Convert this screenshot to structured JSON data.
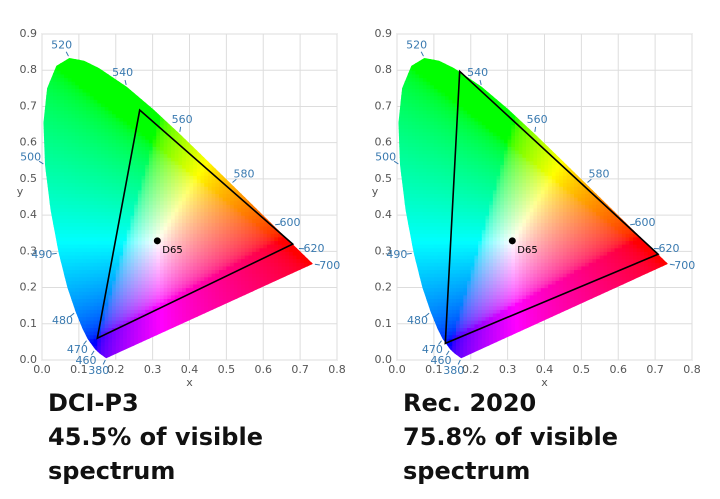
{
  "chart_data": [
    {
      "type": "chromaticity",
      "title": "DCI-P3",
      "subtitle": "45.5% of visible spectrum",
      "x_label": "x",
      "y_label": "y",
      "xlim": [
        0,
        0.8
      ],
      "ylim": [
        0,
        0.9
      ],
      "xticks": [
        {
          "value": 0,
          "label": "0.0"
        },
        0.1,
        0.2,
        0.3,
        0.4,
        0.5,
        0.6,
        0.7,
        0.8
      ],
      "yticks": [
        {
          "value": 0,
          "label": "0.0"
        },
        0.1,
        0.2,
        0.3,
        0.4,
        0.5,
        0.6,
        0.7,
        0.8,
        0.9
      ],
      "grid": true,
      "locus": {
        "x": [
          0.1741,
          0.1566,
          0.144,
          0.1241,
          0.1096,
          0.0913,
          0.0687,
          0.0454,
          0.0235,
          0.0082,
          0.0039,
          0.0139,
          0.0389,
          0.0743,
          0.1142,
          0.1547,
          0.2296,
          0.3016,
          0.3731,
          0.4441,
          0.5125,
          0.5752,
          0.627,
          0.6915,
          0.719,
          0.7347
        ],
        "y": [
          0.005,
          0.0177,
          0.0297,
          0.0578,
          0.0868,
          0.1327,
          0.2007,
          0.295,
          0.4127,
          0.5384,
          0.6548,
          0.7502,
          0.812,
          0.8338,
          0.8262,
          0.8059,
          0.7543,
          0.6923,
          0.6245,
          0.5547,
          0.4866,
          0.4242,
          0.3725,
          0.3083,
          0.2809,
          0.2653
        ]
      },
      "wavelength_labels": [
        {
          "text": "380",
          "x": 0.1741,
          "y": 0.005
        },
        {
          "text": "460",
          "x": 0.144,
          "y": 0.0297
        },
        {
          "text": "470",
          "x": 0.1241,
          "y": 0.0578
        },
        {
          "text": "480",
          "x": 0.0913,
          "y": 0.1327
        },
        {
          "text": "490",
          "x": 0.0454,
          "y": 0.295
        },
        {
          "text": "500",
          "x": 0.0082,
          "y": 0.5384
        },
        {
          "text": "520",
          "x": 0.0743,
          "y": 0.8338
        },
        {
          "text": "540",
          "x": 0.2296,
          "y": 0.7543
        },
        {
          "text": "560",
          "x": 0.3731,
          "y": 0.6245
        },
        {
          "text": "580",
          "x": 0.5125,
          "y": 0.4866
        },
        {
          "text": "600",
          "x": 0.627,
          "y": 0.3725
        },
        {
          "text": "620",
          "x": 0.6915,
          "y": 0.3083
        },
        {
          "text": "700",
          "x": 0.7347,
          "y": 0.2653
        }
      ],
      "gamut": {
        "x": [
          0.68,
          0.265,
          0.15
        ],
        "y": [
          0.32,
          0.69,
          0.06
        ],
        "color": "#000000"
      },
      "white_point": {
        "label": "D65",
        "x": 0.3127,
        "y": 0.329
      }
    },
    {
      "type": "chromaticity",
      "title": "Rec. 2020",
      "subtitle": "75.8% of visible spectrum",
      "x_label": "x",
      "y_label": "y",
      "xlim": [
        0,
        0.8
      ],
      "ylim": [
        0,
        0.9
      ],
      "xticks": [
        {
          "value": 0,
          "label": "0.0"
        },
        0.1,
        0.2,
        0.3,
        0.4,
        0.5,
        0.6,
        0.7,
        0.8
      ],
      "yticks": [
        {
          "value": 0,
          "label": "0.0"
        },
        0.1,
        0.2,
        0.3,
        0.4,
        0.5,
        0.6,
        0.7,
        0.8,
        0.9
      ],
      "grid": true,
      "locus": {
        "x": [
          0.1741,
          0.1566,
          0.144,
          0.1241,
          0.1096,
          0.0913,
          0.0687,
          0.0454,
          0.0235,
          0.0082,
          0.0039,
          0.0139,
          0.0389,
          0.0743,
          0.1142,
          0.1547,
          0.2296,
          0.3016,
          0.3731,
          0.4441,
          0.5125,
          0.5752,
          0.627,
          0.6915,
          0.719,
          0.7347
        ],
        "y": [
          0.005,
          0.0177,
          0.0297,
          0.0578,
          0.0868,
          0.1327,
          0.2007,
          0.295,
          0.4127,
          0.5384,
          0.6548,
          0.7502,
          0.812,
          0.8338,
          0.8262,
          0.8059,
          0.7543,
          0.6923,
          0.6245,
          0.5547,
          0.4866,
          0.4242,
          0.3725,
          0.3083,
          0.2809,
          0.2653
        ]
      },
      "wavelength_labels": [
        {
          "text": "380",
          "x": 0.1741,
          "y": 0.005
        },
        {
          "text": "460",
          "x": 0.144,
          "y": 0.0297
        },
        {
          "text": "470",
          "x": 0.1241,
          "y": 0.0578
        },
        {
          "text": "480",
          "x": 0.0913,
          "y": 0.1327
        },
        {
          "text": "490",
          "x": 0.0454,
          "y": 0.295
        },
        {
          "text": "500",
          "x": 0.0082,
          "y": 0.5384
        },
        {
          "text": "520",
          "x": 0.0743,
          "y": 0.8338
        },
        {
          "text": "540",
          "x": 0.2296,
          "y": 0.7543
        },
        {
          "text": "560",
          "x": 0.3731,
          "y": 0.6245
        },
        {
          "text": "580",
          "x": 0.5125,
          "y": 0.4866
        },
        {
          "text": "600",
          "x": 0.627,
          "y": 0.3725
        },
        {
          "text": "620",
          "x": 0.6915,
          "y": 0.3083
        },
        {
          "text": "700",
          "x": 0.7347,
          "y": 0.2653
        }
      ],
      "gamut": {
        "x": [
          0.708,
          0.17,
          0.131
        ],
        "y": [
          0.292,
          0.797,
          0.046
        ],
        "color": "#000000"
      },
      "white_point": {
        "label": "D65",
        "x": 0.3127,
        "y": 0.329
      }
    }
  ]
}
